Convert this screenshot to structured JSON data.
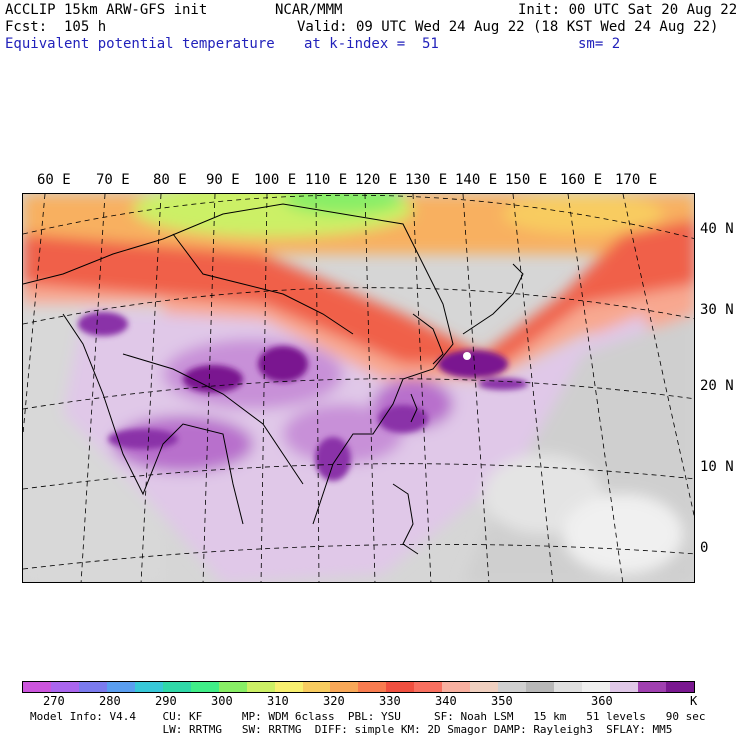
{
  "header": {
    "model": "ACCLIP 15km ARW-GFS init",
    "org": "NCAR/MMM",
    "init": "Init: 00 UTC Sat 20 Aug 22",
    "fcst": "Fcst:  105 h",
    "valid": "Valid: 09 UTC Wed 24 Aug 22 (18 KST Wed 24 Aug 22)",
    "field": "Equivalent potential temperature",
    "level": "at k-index =  51",
    "smooth": "sm= 2"
  },
  "map": {
    "lon_labels": [
      "60 E",
      "70 E",
      "80 E",
      "90 E",
      "100 E",
      "110 E",
      "120 E",
      "130 E",
      "140 E",
      "150 E",
      "160 E",
      "170 E"
    ],
    "lat_labels": [
      "40 N",
      "30 N",
      "20 N",
      "10 N",
      "0"
    ]
  },
  "colorbar": {
    "colors": [
      "#cc55dd",
      "#aa66ee",
      "#7b7bee",
      "#5a9ef0",
      "#38c8d8",
      "#30d8a8",
      "#40ee88",
      "#88ee66",
      "#ccf066",
      "#f8f070",
      "#f8cc60",
      "#f8a858",
      "#f87c50",
      "#f05040",
      "#f87060",
      "#f8b0a0",
      "#f0d0c0",
      "#d0d0d0",
      "#b8b8b8",
      "#e0e0e0",
      "#f0f0f0",
      "#e0c8e8",
      "#a040b0",
      "#7a1890"
    ],
    "labels": [
      "270",
      "280",
      "290",
      "300",
      "310",
      "320",
      "330",
      "340",
      "350",
      "360"
    ],
    "unit": "K"
  },
  "footer": {
    "line1": "Model Info: V4.4    CU: KF      MP: WDM 6class  PBL: YSU     SF: Noah LSM   15 km   51 levels   90 sec",
    "line2": "                    LW: RRTMG   SW: RRTMG  DIFF: simple KM: 2D Smagor DAMP: Rayleigh3  SFLAY: MM5"
  }
}
